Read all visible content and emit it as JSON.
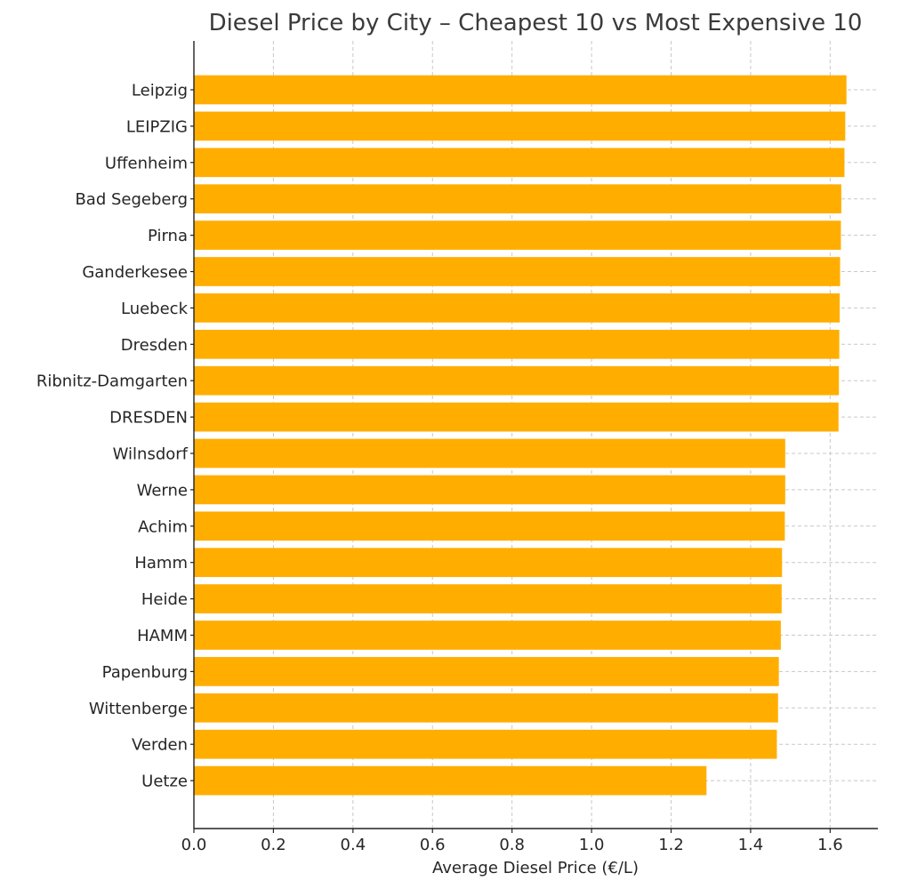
{
  "chart_data": {
    "type": "bar",
    "orientation": "horizontal",
    "title": "Diesel Price by City – Cheapest 10 vs Most Expensive 10",
    "xlabel": "Average Diesel Price (€/L)",
    "ylabel": "",
    "xlim": [
      0,
      1.72
    ],
    "xticks": [
      0.0,
      0.2,
      0.4,
      0.6,
      0.8,
      1.0,
      1.2,
      1.4,
      1.6
    ],
    "xtick_labels": [
      "0.0",
      "0.2",
      "0.4",
      "0.6",
      "0.8",
      "1.0",
      "1.2",
      "1.4",
      "1.6"
    ],
    "grid": true,
    "bar_color": "#ffae00",
    "categories": [
      "Leipzig",
      "LEIPZIG",
      "Uffenheim",
      "Bad Segeberg",
      "Pirna",
      "Ganderkesee",
      "Luebeck",
      "Dresden",
      "Ribnitz-Damgarten",
      "DRESDEN",
      "Wilnsdorf",
      "Werne",
      "Achim",
      "Hamm",
      "Heide",
      "HAMM",
      "Papenburg",
      "Wittenberge",
      "Verden",
      "Uetze"
    ],
    "values": [
      1.641,
      1.638,
      1.636,
      1.628,
      1.627,
      1.625,
      1.624,
      1.623,
      1.622,
      1.621,
      1.487,
      1.487,
      1.486,
      1.479,
      1.478,
      1.476,
      1.471,
      1.469,
      1.466,
      1.289
    ]
  }
}
